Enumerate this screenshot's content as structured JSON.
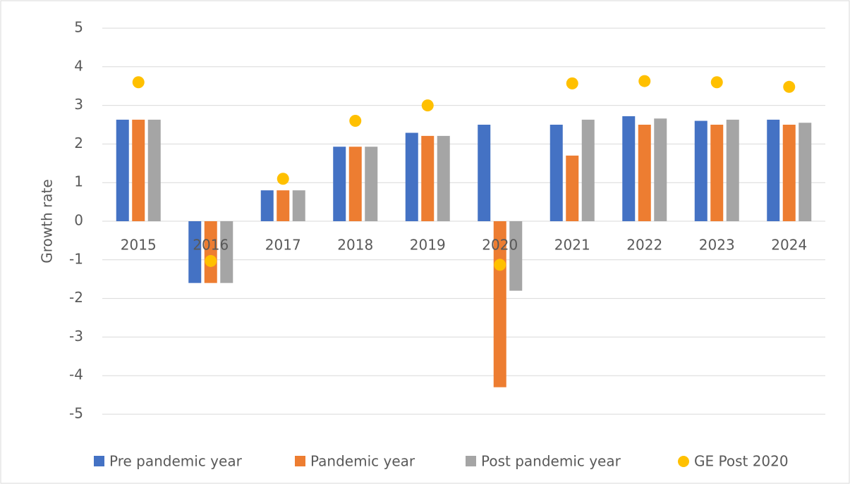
{
  "chart_data": {
    "type": "bar",
    "y_label": "Growth rate",
    "categories": [
      "2015",
      "2016",
      "2017",
      "2018",
      "2019",
      "2020",
      "2021",
      "2022",
      "2023",
      "2024"
    ],
    "series": [
      {
        "name": "Pre pandemic year",
        "color": "#4472c4",
        "values": [
          2.63,
          -1.6,
          0.8,
          1.93,
          2.29,
          2.5,
          2.5,
          2.72,
          2.6,
          2.63
        ]
      },
      {
        "name": "Pandemic year",
        "color": "#ed7d31",
        "values": [
          2.63,
          -1.6,
          0.8,
          1.93,
          2.21,
          -4.3,
          1.7,
          2.5,
          2.5,
          2.5
        ]
      },
      {
        "name": "Post pandemic year",
        "color": "#a5a5a5",
        "values": [
          2.63,
          -1.6,
          0.8,
          1.93,
          2.21,
          -1.8,
          2.63,
          2.66,
          2.63,
          2.55
        ]
      },
      {
        "name": "GE Post 2020",
        "color": "#ffc000",
        "type": "scatter",
        "values": [
          3.6,
          -1.03,
          1.1,
          2.6,
          3.0,
          -1.13,
          3.57,
          3.63,
          3.6,
          3.48
        ]
      }
    ],
    "ylim": [
      -5,
      5
    ],
    "yticks": [
      -5,
      -4,
      -3,
      -2,
      -1,
      0,
      1,
      2,
      3,
      4,
      5
    ],
    "grid": true,
    "legend": "bottom"
  }
}
